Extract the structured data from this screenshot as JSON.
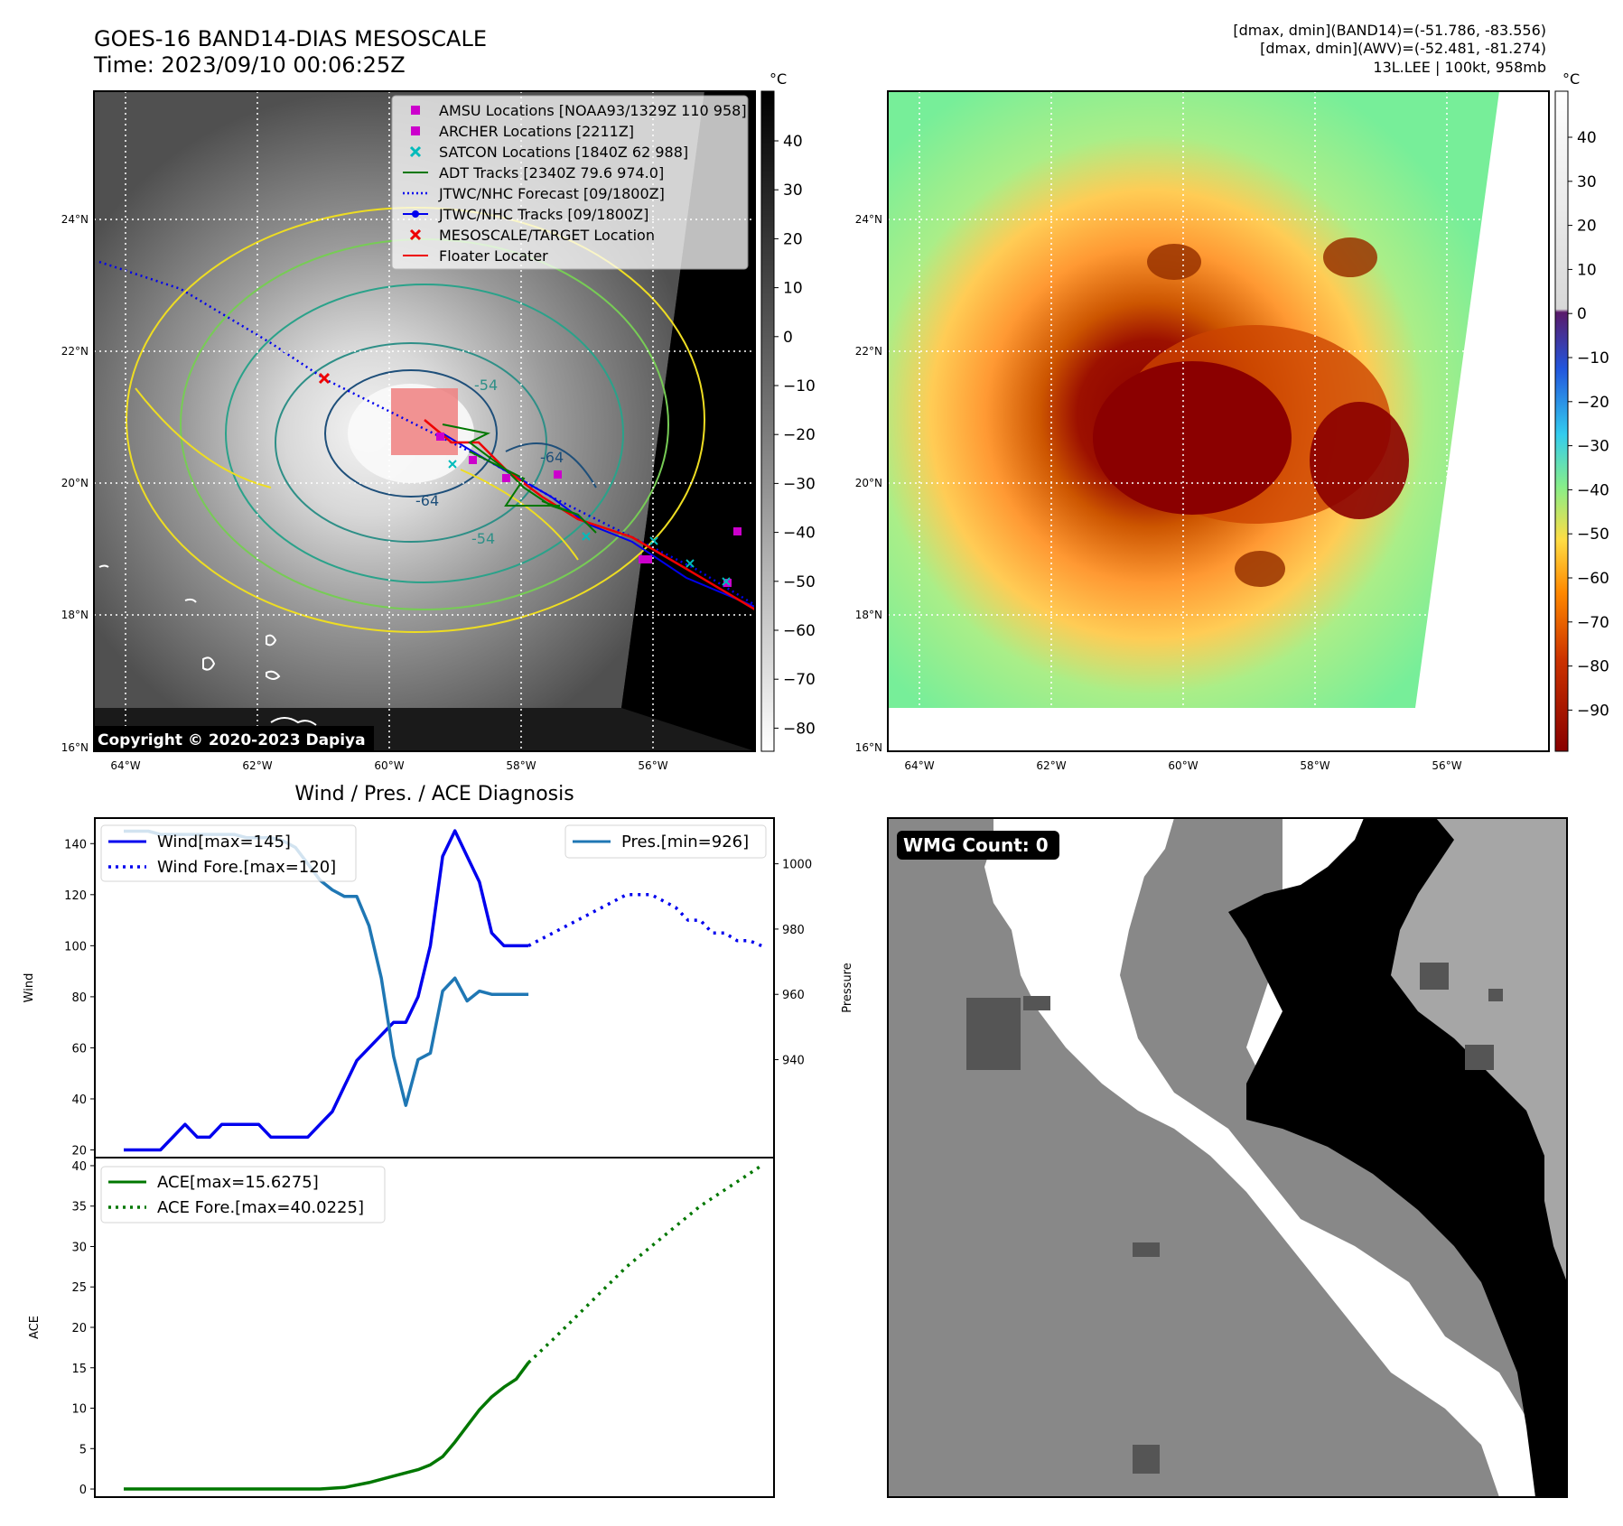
{
  "header": {
    "title_line1": "GOES-16 BAND14-DIAS MESOSCALE",
    "title_line2": "Time: 2023/09/10 00:06:25Z",
    "info_line1": "[dmax, dmin](BAND14)=(-51.786, -83.556)",
    "info_line2": "[dmax, dmin](AWV)=(-52.481, -81.274)",
    "info_line3": "13L.LEE | 100kt, 958mb"
  },
  "satellite_panels": {
    "lat_ticks": [
      "24°N",
      "22°N",
      "20°N",
      "18°N",
      "16°N"
    ],
    "lon_ticks": [
      "64°W",
      "62°W",
      "60°W",
      "58°W",
      "56°W"
    ],
    "copyright": "Copyright © 2020-2023 Dapiya",
    "contour_labels": [
      "-64",
      "-54",
      "-54",
      "-64"
    ],
    "gray_colorbar": {
      "unit": "°C",
      "ticks": [
        "40",
        "30",
        "20",
        "10",
        "0",
        "−10",
        "−20",
        "−30",
        "−40",
        "−50",
        "−60",
        "−70",
        "−80"
      ]
    },
    "color_colorbar": {
      "unit": "°C",
      "ticks": [
        "40",
        "30",
        "20",
        "10",
        "0",
        "−10",
        "−20",
        "−30",
        "−40",
        "−50",
        "−60",
        "−70",
        "−80",
        "−90"
      ]
    },
    "legend": [
      {
        "label": "AMSU Locations [NOAA93/1329Z 110 958]",
        "color": "#cc00cc",
        "kind": "square"
      },
      {
        "label": "ARCHER Locations [2211Z]",
        "color": "#cc00cc",
        "kind": "square"
      },
      {
        "label": "SATCON Locations [1840Z 62 988]",
        "color": "#00bbbb",
        "kind": "x"
      },
      {
        "label": "ADT Tracks [2340Z 79.6 974.0]",
        "color": "#007700",
        "kind": "line"
      },
      {
        "label": "JTWC/NHC Forecast [09/1800Z]",
        "color": "#0000ee",
        "kind": "dotted"
      },
      {
        "label": "JTWC/NHC Tracks [09/1800Z]",
        "color": "#0000ee",
        "kind": "line-dot"
      },
      {
        "label": "MESOSCALE/TARGET Location",
        "color": "#ee0000",
        "kind": "x"
      },
      {
        "label": "Floater Locater",
        "color": "#ee0000",
        "kind": "line"
      }
    ]
  },
  "diagnosis": {
    "title": "Wind / Pres. / ACE Diagnosis",
    "wind_ylabel": "Wind",
    "pres_ylabel": "Pressure",
    "ace_ylabel": "ACE",
    "wind_legend": [
      "Wind[max=145]",
      "Wind Fore.[max=120]"
    ],
    "pres_legend": [
      "Pres.[min=926]"
    ],
    "ace_legend": [
      "ACE[max=15.6275]",
      "ACE Fore.[max=40.0225]"
    ],
    "wmg_label": "WMG Count: 0",
    "colors": {
      "wind": "#0000ee",
      "pres": "#1f77b4",
      "ace": "#007700"
    }
  },
  "chart_data": [
    {
      "type": "line",
      "title": "Wind / Pres. / ACE Diagnosis",
      "ylabel": "Wind",
      "ylim": [
        17,
        150
      ],
      "yticks": [
        20,
        40,
        60,
        80,
        100,
        120,
        140
      ],
      "x": [
        0,
        1,
        2,
        3,
        4,
        5,
        6,
        7,
        8,
        9,
        10,
        11,
        12,
        13,
        14,
        15,
        16,
        17,
        18,
        19,
        20,
        21,
        22,
        23,
        24,
        25,
        26,
        27,
        28,
        29,
        30,
        31,
        32,
        33,
        34,
        35,
        36,
        37,
        38,
        39,
        40,
        41,
        42,
        43,
        44,
        45,
        46,
        47,
        48,
        49,
        50,
        51,
        52
      ],
      "series": [
        {
          "name": "Wind[max=145]",
          "x": [
            0,
            1,
            2,
            3,
            4,
            5,
            6,
            7,
            8,
            9,
            10,
            11,
            12,
            13,
            14,
            15,
            16,
            17,
            18,
            19,
            20,
            21,
            22,
            23,
            24,
            25,
            26,
            27,
            28,
            29,
            30,
            31,
            32,
            33
          ],
          "values": [
            20,
            20,
            20,
            20,
            25,
            30,
            25,
            25,
            30,
            30,
            30,
            30,
            25,
            25,
            25,
            25,
            30,
            35,
            45,
            55,
            60,
            65,
            70,
            70,
            80,
            100,
            135,
            145,
            135,
            125,
            105,
            100,
            100,
            100
          ]
        },
        {
          "name": "Wind Fore.[max=120]",
          "style": "dotted",
          "x": [
            33,
            35,
            37,
            39,
            41,
            43,
            45,
            46,
            47,
            48,
            49,
            50,
            51,
            52
          ],
          "values": [
            100,
            105,
            110,
            115,
            120,
            120,
            115,
            110,
            110,
            105,
            105,
            102,
            102,
            100
          ]
        },
        {
          "name": "Pres.[min=926]",
          "axis": "right",
          "ylim": [
            910,
            1014
          ],
          "yticks": [
            940,
            960,
            980,
            1000
          ],
          "x": [
            0,
            1,
            2,
            3,
            4,
            5,
            6,
            7,
            8,
            9,
            10,
            11,
            12,
            13,
            14,
            15,
            16,
            17,
            18,
            19,
            20,
            21,
            22,
            23,
            24,
            25,
            26,
            27,
            28,
            29,
            30,
            31,
            32,
            33
          ],
          "values": [
            1010,
            1010,
            1010,
            1009,
            1009,
            1009,
            1009,
            1009,
            1009,
            1009,
            1008,
            1008,
            1008,
            1007,
            1005,
            1000,
            995,
            992,
            990,
            990,
            981,
            965,
            941,
            926,
            940,
            942,
            961,
            965,
            958,
            961,
            960,
            960,
            960,
            960
          ]
        }
      ]
    },
    {
      "type": "line",
      "ylabel": "ACE",
      "ylim": [
        -1,
        41
      ],
      "yticks": [
        0,
        5,
        10,
        15,
        20,
        25,
        30,
        35,
        40
      ],
      "series": [
        {
          "name": "ACE[max=15.6275]",
          "x": [
            0,
            4,
            8,
            12,
            16,
            18,
            20,
            22,
            24,
            25,
            26,
            27,
            28,
            29,
            30,
            31,
            32,
            33
          ],
          "values": [
            0,
            0,
            0,
            0,
            0,
            0.2,
            0.8,
            1.6,
            2.4,
            3.0,
            4.0,
            5.8,
            7.8,
            9.8,
            11.4,
            12.6,
            13.6,
            15.6275
          ]
        },
        {
          "name": "ACE Fore.[max=40.0225]",
          "style": "dotted",
          "x": [
            33,
            35,
            37,
            39,
            41,
            43,
            45,
            47,
            49,
            51,
            52
          ],
          "values": [
            15.6275,
            18.5,
            21.5,
            24.5,
            27.5,
            30.0,
            32.5,
            35.0,
            37.0,
            39.0,
            40.0225
          ]
        }
      ]
    }
  ]
}
